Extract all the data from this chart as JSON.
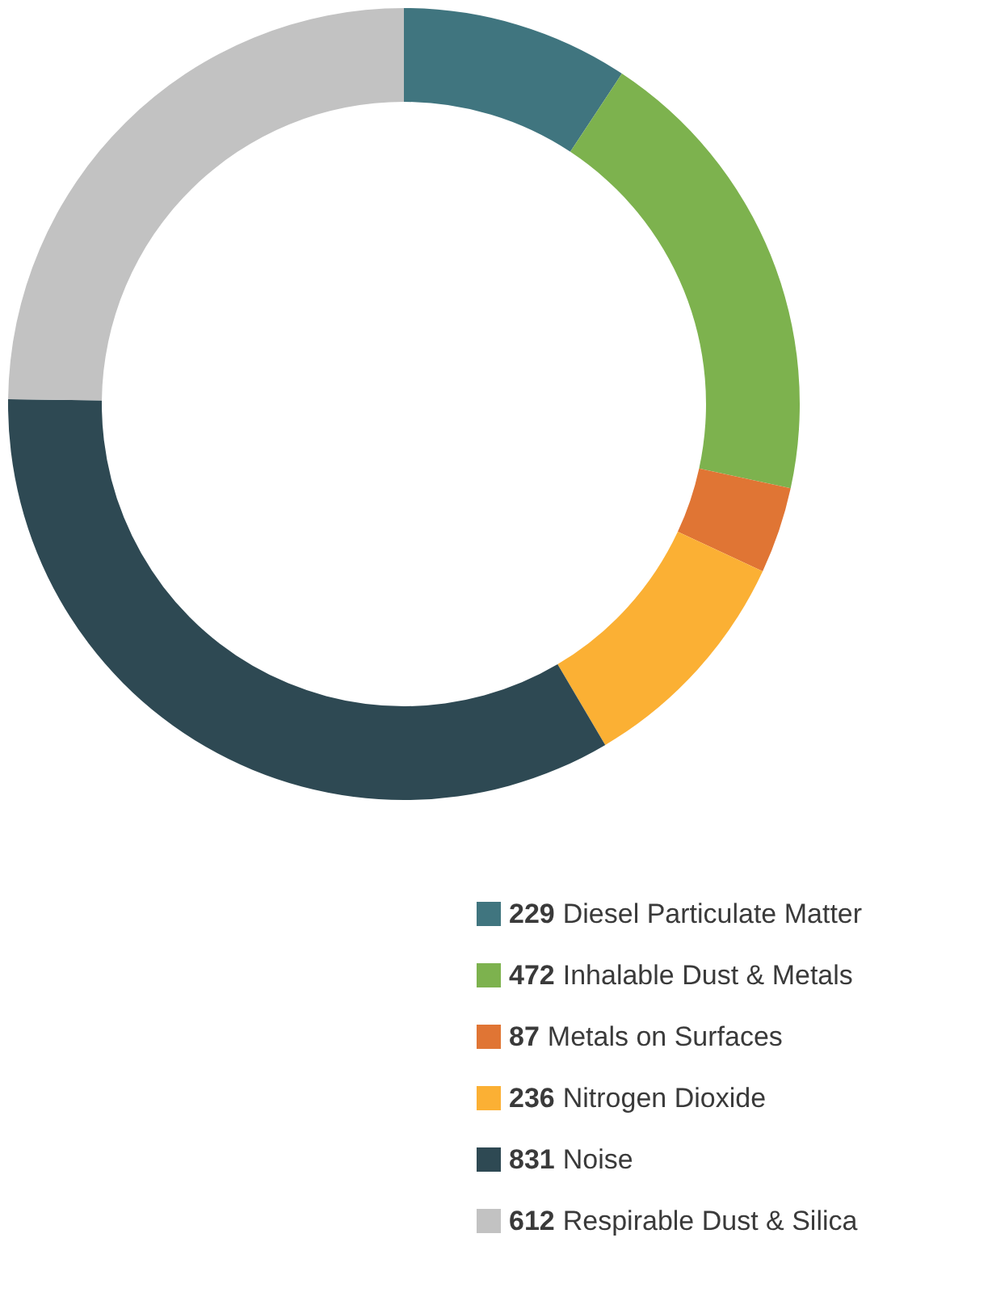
{
  "chart_data": {
    "type": "donut",
    "categories": [
      "Diesel Particulate Matter",
      "Inhalable Dust & Metals",
      "Metals on Surfaces",
      "Nitrogen Dioxide",
      "Noise",
      "Respirable Dust & Silica"
    ],
    "values": [
      229,
      472,
      87,
      236,
      831,
      612
    ],
    "colors": [
      "#40757f",
      "#7db24e",
      "#e07534",
      "#fbb034",
      "#2e4953",
      "#c2c2c2"
    ],
    "data_labels": true,
    "legend": "bottom right"
  }
}
